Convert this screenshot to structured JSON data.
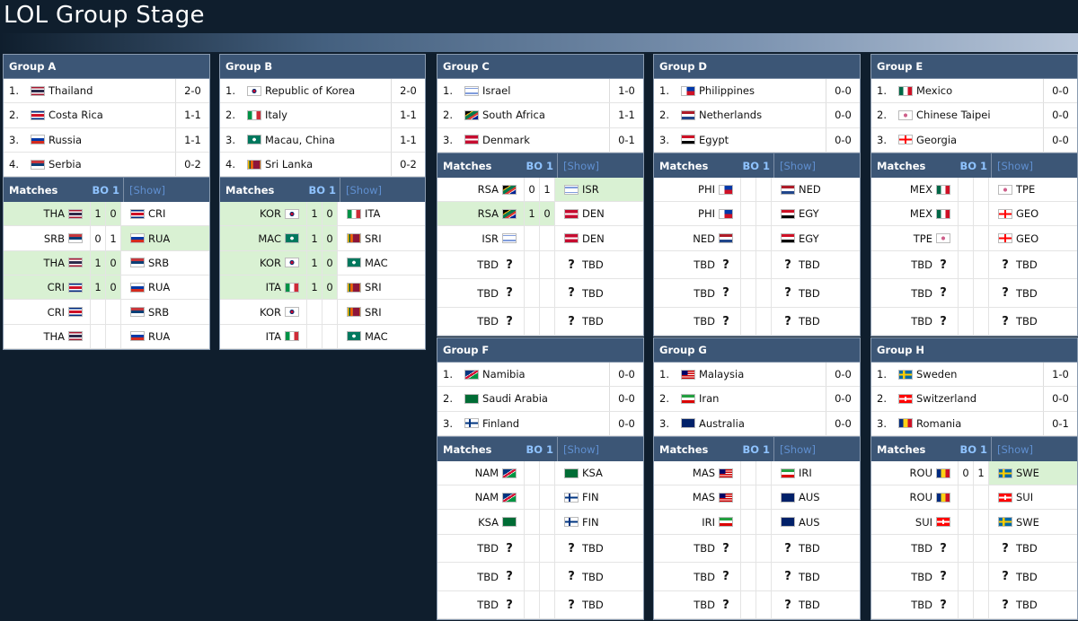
{
  "page": {
    "title": "LOL Group Stage"
  },
  "groups": [
    {
      "name": "Group A",
      "standings": [
        {
          "rank": "1.",
          "team": "Thailand",
          "code": "THA",
          "record": "2-0"
        },
        {
          "rank": "2.",
          "team": "Costa Rica",
          "code": "CRI",
          "record": "1-1"
        },
        {
          "rank": "3.",
          "team": "Russia",
          "code": "RUA",
          "record": "1-1"
        },
        {
          "rank": "4.",
          "team": "Serbia",
          "code": "SRB",
          "record": "0-2"
        }
      ],
      "matches_label": "Matches",
      "bo_label": "BO 1",
      "show_label": "[Show]",
      "matches": [
        {
          "t1": "THA",
          "s1": "1",
          "s2": "0",
          "t2": "CRI",
          "winner": 1
        },
        {
          "t1": "SRB",
          "s1": "0",
          "s2": "1",
          "t2": "RUA",
          "winner": 2
        },
        {
          "t1": "THA",
          "s1": "1",
          "s2": "0",
          "t2": "SRB",
          "winner": 1
        },
        {
          "t1": "CRI",
          "s1": "1",
          "s2": "0",
          "t2": "RUA",
          "winner": 1
        },
        {
          "t1": "CRI",
          "s1": "",
          "s2": "",
          "t2": "SRB",
          "winner": 0
        },
        {
          "t1": "THA",
          "s1": "",
          "s2": "",
          "t2": "RUA",
          "winner": 0
        }
      ]
    },
    {
      "name": "Group B",
      "standings": [
        {
          "rank": "1.",
          "team": "Republic of Korea",
          "code": "KOR",
          "record": "2-0"
        },
        {
          "rank": "2.",
          "team": "Italy",
          "code": "ITA",
          "record": "1-1"
        },
        {
          "rank": "3.",
          "team": "Macau, China",
          "code": "MAC",
          "record": "1-1"
        },
        {
          "rank": "4.",
          "team": "Sri Lanka",
          "code": "SRI",
          "record": "0-2"
        }
      ],
      "matches_label": "Matches",
      "bo_label": "BO 1",
      "show_label": "[Show]",
      "matches": [
        {
          "t1": "KOR",
          "s1": "1",
          "s2": "0",
          "t2": "ITA",
          "winner": 1
        },
        {
          "t1": "MAC",
          "s1": "1",
          "s2": "0",
          "t2": "SRI",
          "winner": 1
        },
        {
          "t1": "KOR",
          "s1": "1",
          "s2": "0",
          "t2": "MAC",
          "winner": 1
        },
        {
          "t1": "ITA",
          "s1": "1",
          "s2": "0",
          "t2": "SRI",
          "winner": 1
        },
        {
          "t1": "KOR",
          "s1": "",
          "s2": "",
          "t2": "SRI",
          "winner": 0
        },
        {
          "t1": "ITA",
          "s1": "",
          "s2": "",
          "t2": "MAC",
          "winner": 0
        }
      ]
    },
    {
      "name": "Group C",
      "standings": [
        {
          "rank": "1.",
          "team": "Israel",
          "code": "ISR",
          "record": "1-0"
        },
        {
          "rank": "2.",
          "team": "South Africa",
          "code": "RSA",
          "record": "1-1"
        },
        {
          "rank": "3.",
          "team": "Denmark",
          "code": "DEN",
          "record": "0-1"
        }
      ],
      "matches_label": "Matches",
      "bo_label": "BO 1",
      "show_label": "[Show]",
      "matches": [
        {
          "t1": "RSA",
          "s1": "0",
          "s2": "1",
          "t2": "ISR",
          "winner": 2
        },
        {
          "t1": "RSA",
          "s1": "1",
          "s2": "0",
          "t2": "DEN",
          "winner": 1
        },
        {
          "t1": "ISR",
          "s1": "",
          "s2": "",
          "t2": "DEN",
          "winner": 0
        },
        {
          "t1": "TBD",
          "s1": "",
          "s2": "",
          "t2": "TBD",
          "winner": 0
        },
        {
          "t1": "TBD",
          "s1": "",
          "s2": "",
          "t2": "TBD",
          "winner": 0
        },
        {
          "t1": "TBD",
          "s1": "",
          "s2": "",
          "t2": "TBD",
          "winner": 0
        }
      ]
    },
    {
      "name": "Group D",
      "standings": [
        {
          "rank": "1.",
          "team": "Philippines",
          "code": "PHI",
          "record": "0-0"
        },
        {
          "rank": "2.",
          "team": "Netherlands",
          "code": "NED",
          "record": "0-0"
        },
        {
          "rank": "3.",
          "team": "Egypt",
          "code": "EGY",
          "record": "0-0"
        }
      ],
      "matches_label": "Matches",
      "bo_label": "BO 1",
      "show_label": "[Show]",
      "matches": [
        {
          "t1": "PHI",
          "s1": "",
          "s2": "",
          "t2": "NED",
          "winner": 0
        },
        {
          "t1": "PHI",
          "s1": "",
          "s2": "",
          "t2": "EGY",
          "winner": 0
        },
        {
          "t1": "NED",
          "s1": "",
          "s2": "",
          "t2": "EGY",
          "winner": 0
        },
        {
          "t1": "TBD",
          "s1": "",
          "s2": "",
          "t2": "TBD",
          "winner": 0
        },
        {
          "t1": "TBD",
          "s1": "",
          "s2": "",
          "t2": "TBD",
          "winner": 0
        },
        {
          "t1": "TBD",
          "s1": "",
          "s2": "",
          "t2": "TBD",
          "winner": 0
        }
      ]
    },
    {
      "name": "Group E",
      "standings": [
        {
          "rank": "1.",
          "team": "Mexico",
          "code": "MEX",
          "record": "0-0"
        },
        {
          "rank": "2.",
          "team": "Chinese Taipei",
          "code": "TPE",
          "record": "0-0"
        },
        {
          "rank": "3.",
          "team": "Georgia",
          "code": "GEO",
          "record": "0-0"
        }
      ],
      "matches_label": "Matches",
      "bo_label": "BO 1",
      "show_label": "[Show]",
      "matches": [
        {
          "t1": "MEX",
          "s1": "",
          "s2": "",
          "t2": "TPE",
          "winner": 0
        },
        {
          "t1": "MEX",
          "s1": "",
          "s2": "",
          "t2": "GEO",
          "winner": 0
        },
        {
          "t1": "TPE",
          "s1": "",
          "s2": "",
          "t2": "GEO",
          "winner": 0
        },
        {
          "t1": "TBD",
          "s1": "",
          "s2": "",
          "t2": "TBD",
          "winner": 0
        },
        {
          "t1": "TBD",
          "s1": "",
          "s2": "",
          "t2": "TBD",
          "winner": 0
        },
        {
          "t1": "TBD",
          "s1": "",
          "s2": "",
          "t2": "TBD",
          "winner": 0
        }
      ]
    },
    {
      "name": "Group F",
      "standings": [
        {
          "rank": "1.",
          "team": "Namibia",
          "code": "NAM",
          "record": "0-0"
        },
        {
          "rank": "2.",
          "team": "Saudi Arabia",
          "code": "KSA",
          "record": "0-0"
        },
        {
          "rank": "3.",
          "team": "Finland",
          "code": "FIN",
          "record": "0-0"
        }
      ],
      "matches_label": "Matches",
      "bo_label": "BO 1",
      "show_label": "[Show]",
      "matches": [
        {
          "t1": "NAM",
          "s1": "",
          "s2": "",
          "t2": "KSA",
          "winner": 0
        },
        {
          "t1": "NAM",
          "s1": "",
          "s2": "",
          "t2": "FIN",
          "winner": 0
        },
        {
          "t1": "KSA",
          "s1": "",
          "s2": "",
          "t2": "FIN",
          "winner": 0
        },
        {
          "t1": "TBD",
          "s1": "",
          "s2": "",
          "t2": "TBD",
          "winner": 0
        },
        {
          "t1": "TBD",
          "s1": "",
          "s2": "",
          "t2": "TBD",
          "winner": 0
        },
        {
          "t1": "TBD",
          "s1": "",
          "s2": "",
          "t2": "TBD",
          "winner": 0
        }
      ]
    },
    {
      "name": "Group G",
      "standings": [
        {
          "rank": "1.",
          "team": "Malaysia",
          "code": "MAS",
          "record": "0-0"
        },
        {
          "rank": "2.",
          "team": "Iran",
          "code": "IRI",
          "record": "0-0"
        },
        {
          "rank": "3.",
          "team": "Australia",
          "code": "AUS",
          "record": "0-0"
        }
      ],
      "matches_label": "Matches",
      "bo_label": "BO 1",
      "show_label": "[Show]",
      "matches": [
        {
          "t1": "MAS",
          "s1": "",
          "s2": "",
          "t2": "IRI",
          "winner": 0
        },
        {
          "t1": "MAS",
          "s1": "",
          "s2": "",
          "t2": "AUS",
          "winner": 0
        },
        {
          "t1": "IRI",
          "s1": "",
          "s2": "",
          "t2": "AUS",
          "winner": 0
        },
        {
          "t1": "TBD",
          "s1": "",
          "s2": "",
          "t2": "TBD",
          "winner": 0
        },
        {
          "t1": "TBD",
          "s1": "",
          "s2": "",
          "t2": "TBD",
          "winner": 0
        },
        {
          "t1": "TBD",
          "s1": "",
          "s2": "",
          "t2": "TBD",
          "winner": 0
        }
      ]
    },
    {
      "name": "Group H",
      "standings": [
        {
          "rank": "1.",
          "team": "Sweden",
          "code": "SWE",
          "record": "1-0"
        },
        {
          "rank": "2.",
          "team": "Switzerland",
          "code": "SUI",
          "record": "0-0"
        },
        {
          "rank": "3.",
          "team": "Romania",
          "code": "ROU",
          "record": "0-1"
        }
      ],
      "matches_label": "Matches",
      "bo_label": "BO 1",
      "show_label": "[Show]",
      "matches": [
        {
          "t1": "ROU",
          "s1": "0",
          "s2": "1",
          "t2": "SWE",
          "winner": 2
        },
        {
          "t1": "ROU",
          "s1": "",
          "s2": "",
          "t2": "SUI",
          "winner": 0
        },
        {
          "t1": "SUI",
          "s1": "",
          "s2": "",
          "t2": "SWE",
          "winner": 0
        },
        {
          "t1": "TBD",
          "s1": "",
          "s2": "",
          "t2": "TBD",
          "winner": 0
        },
        {
          "t1": "TBD",
          "s1": "",
          "s2": "",
          "t2": "TBD",
          "winner": 0
        },
        {
          "t1": "TBD",
          "s1": "",
          "s2": "",
          "t2": "TBD",
          "winner": 0
        }
      ]
    }
  ]
}
